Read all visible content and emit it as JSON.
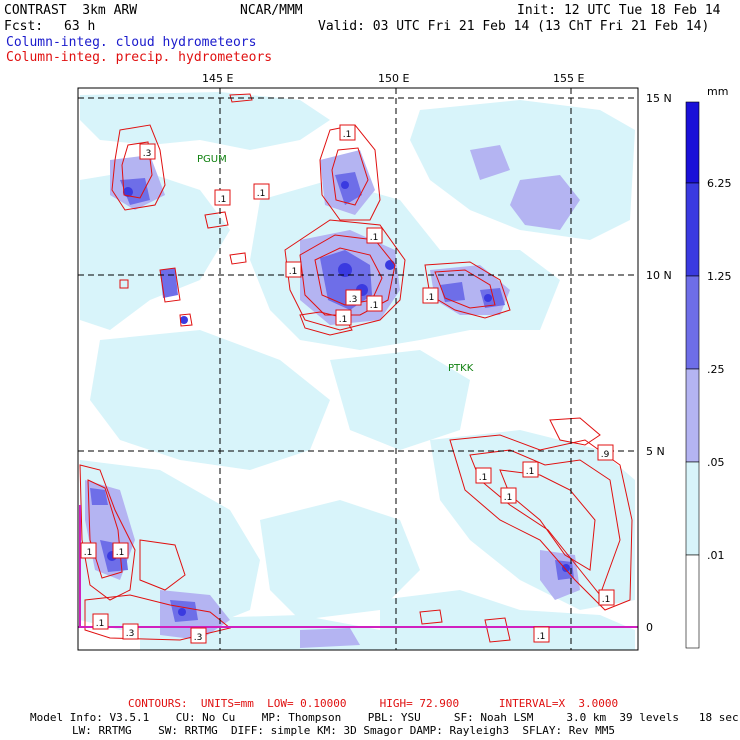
{
  "header": {
    "title": "CONTRAST  3km ARW",
    "org": "NCAR/MMM",
    "init": "Init: 12 UTC Tue 18 Feb 14",
    "fcst_label": "Fcst:",
    "fcst_value": "63 h",
    "valid": "Valid: 03 UTC Fri 21 Feb 14 (13 ChT Fri 21 Feb 14)",
    "field1": "Column-integ. cloud hydrometeors",
    "field2": "Column-integ. precip. hydrometeors"
  },
  "map": {
    "lon_labels": [
      "145 E",
      "150 E",
      "155 E"
    ],
    "lat_labels": [
      "15 N",
      "10 N",
      "5 N",
      "0"
    ],
    "stations": [
      "PGUM",
      "PTKK"
    ],
    "contour_labels": [
      ".1",
      ".3",
      ".1",
      ".1",
      ".1",
      ".1",
      ".3",
      ".1",
      ".1",
      ".1",
      ".1",
      ".1",
      ".1",
      ".9",
      ".1",
      ".3",
      ".3",
      ".1",
      ".1",
      ".1",
      ".1"
    ]
  },
  "colorbar": {
    "unit": "mm",
    "labels": [
      "6.25",
      "1.25",
      ".25",
      ".05",
      ".01"
    ],
    "colors": [
      "#1a10d8",
      "#3a3ae0",
      "#6e6ee8",
      "#b4b4f2",
      "#d8f4fa",
      "#ffffff"
    ]
  },
  "footer": {
    "contours": "CONTOURS:  UNITS=mm  LOW= 0.10000     HIGH= 72.900      INTERVAL=X  3.0000",
    "model_line1": "Model Info: V3.5.1    CU: No Cu    MP: Thompson    PBL: YSU     SF: Noah LSM     3.0 km  39 levels   18 sec",
    "model_line2": "LW: RRTMG    SW: RRTMG  DIFF: simple KM: 3D Smagor DAMP: Rayleigh3  SFLAY: Rev MM5"
  },
  "colors": {
    "contour": "#e01010",
    "grid": "#000000",
    "cloud_light": "#d8f4fa",
    "cloud_mid": "#b4b4f2",
    "cloud_dark": "#6e6ee8",
    "cloud_deep": "#3a3ae0"
  }
}
